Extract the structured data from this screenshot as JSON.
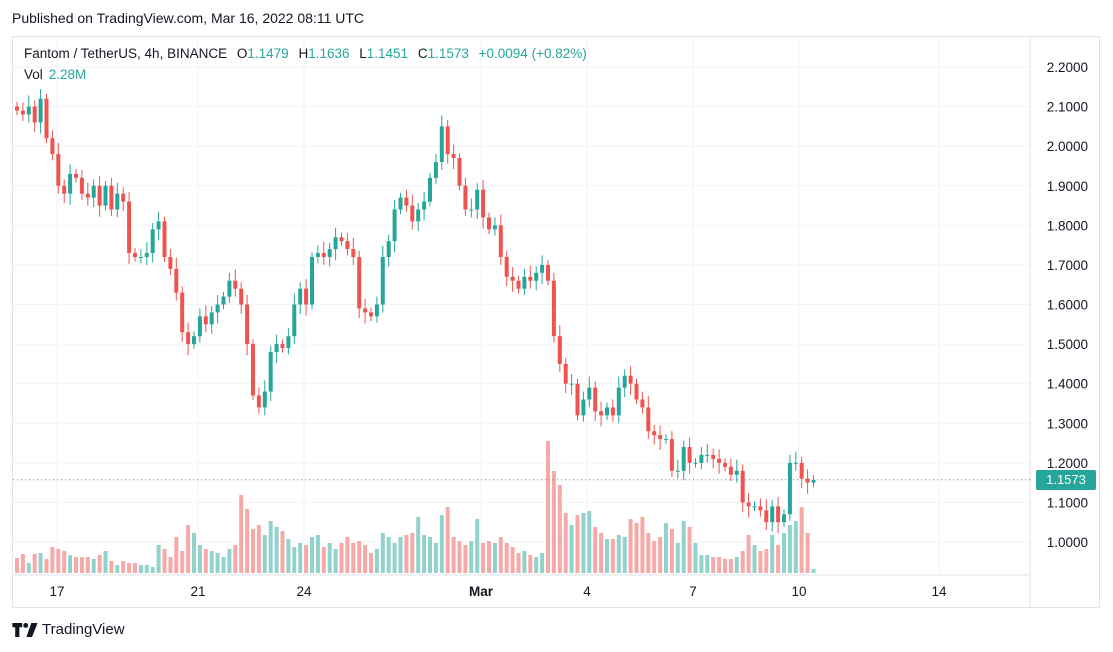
{
  "published": "Published on TradingView.com, Mar 16, 2022 08:11 UTC",
  "legend": {
    "symbol": "Fantom / TetherUS, 4h, BINANCE",
    "o_label": "O",
    "o_value": "1.1479",
    "h_label": "H",
    "h_value": "1.1636",
    "l_label": "L",
    "l_value": "1.1451",
    "c_label": "C",
    "c_value": "1.1573",
    "change": "+0.0094 (+0.82%)",
    "vol_label": "Vol",
    "vol_value": "2.28M"
  },
  "last_price": "1.1573",
  "footer": {
    "brand": "TradingView"
  },
  "colors": {
    "up": "#26a69a",
    "down": "#ef5350",
    "up_vol": "#92d2cc",
    "down_vol": "#f7a9a7"
  },
  "chart_data": {
    "type": "candlestick",
    "symbol": "FTM/USDT",
    "interval": "4h",
    "x_tick_labels": [
      "17",
      "21",
      "24",
      "Mar",
      "4",
      "7",
      "10",
      "14"
    ],
    "y_tick_labels": [
      "1.0000",
      "1.1000",
      "1.2000",
      "1.3000",
      "1.4000",
      "1.5000",
      "1.6000",
      "1.7000",
      "1.8000",
      "1.9000",
      "2.0000",
      "2.1000",
      "2.2000"
    ],
    "ylim": [
      0.925,
      2.285
    ],
    "close_path": [
      2.09,
      2.08,
      2.1,
      2.06,
      2.12,
      2.02,
      1.98,
      1.9,
      1.88,
      1.93,
      1.92,
      1.88,
      1.87,
      1.9,
      1.85,
      1.9,
      1.84,
      1.88,
      1.86,
      1.73,
      1.72,
      1.72,
      1.73,
      1.79,
      1.81,
      1.72,
      1.69,
      1.63,
      1.53,
      1.5,
      1.52,
      1.57,
      1.55,
      1.58,
      1.6,
      1.62,
      1.66,
      1.64,
      1.6,
      1.5,
      1.37,
      1.34,
      1.38,
      1.48,
      1.5,
      1.49,
      1.52,
      1.6,
      1.64,
      1.6,
      1.72,
      1.73,
      1.72,
      1.74,
      1.77,
      1.76,
      1.74,
      1.72,
      1.59,
      1.58,
      1.57,
      1.6,
      1.72,
      1.76,
      1.84,
      1.87,
      1.85,
      1.81,
      1.84,
      1.86,
      1.92,
      1.96,
      2.05,
      1.98,
      1.97,
      1.9,
      1.84,
      1.84,
      1.89,
      1.82,
      1.79,
      1.8,
      1.72,
      1.67,
      1.66,
      1.64,
      1.67,
      1.66,
      1.68,
      1.7,
      1.66,
      1.52,
      1.45,
      1.4,
      1.4,
      1.32,
      1.36,
      1.39,
      1.33,
      1.32,
      1.34,
      1.32,
      1.39,
      1.42,
      1.4,
      1.36,
      1.34,
      1.28,
      1.27,
      1.26,
      1.26,
      1.18,
      1.18,
      1.24,
      1.2,
      1.2,
      1.22,
      1.22,
      1.21,
      1.2,
      1.19,
      1.17,
      1.18,
      1.1,
      1.09,
      1.09,
      1.08,
      1.05,
      1.09,
      1.05,
      1.07,
      1.2,
      1.2,
      1.16,
      1.15,
      1.157
    ],
    "volume_heights": [
      15,
      19,
      10,
      19,
      20,
      14,
      26,
      24,
      22,
      18,
      16,
      16,
      16,
      14,
      18,
      22,
      12,
      8,
      12,
      10,
      10,
      8,
      8,
      6,
      28,
      24,
      16,
      36,
      22,
      48,
      40,
      28,
      24,
      22,
      20,
      16,
      24,
      28,
      78,
      64,
      44,
      48,
      38,
      52,
      46,
      42,
      34,
      26,
      30,
      28,
      36,
      38,
      26,
      30,
      24,
      30,
      36,
      30,
      32,
      28,
      20,
      24,
      40,
      36,
      30,
      36,
      38,
      40,
      56,
      38,
      36,
      30,
      58,
      66,
      36,
      32,
      28,
      32,
      54,
      30,
      32,
      30,
      36,
      30,
      26,
      20,
      22,
      18,
      16,
      20,
      132,
      102,
      88,
      60,
      48,
      58,
      60,
      62,
      46,
      40,
      34,
      34,
      38,
      36,
      54,
      50,
      56,
      40,
      32,
      36,
      50,
      44,
      30,
      52,
      46,
      30,
      18,
      18,
      16,
      16,
      14,
      14,
      16,
      22,
      38,
      28,
      22,
      24,
      38,
      28,
      40,
      48,
      52,
      66,
      40,
      4
    ]
  }
}
